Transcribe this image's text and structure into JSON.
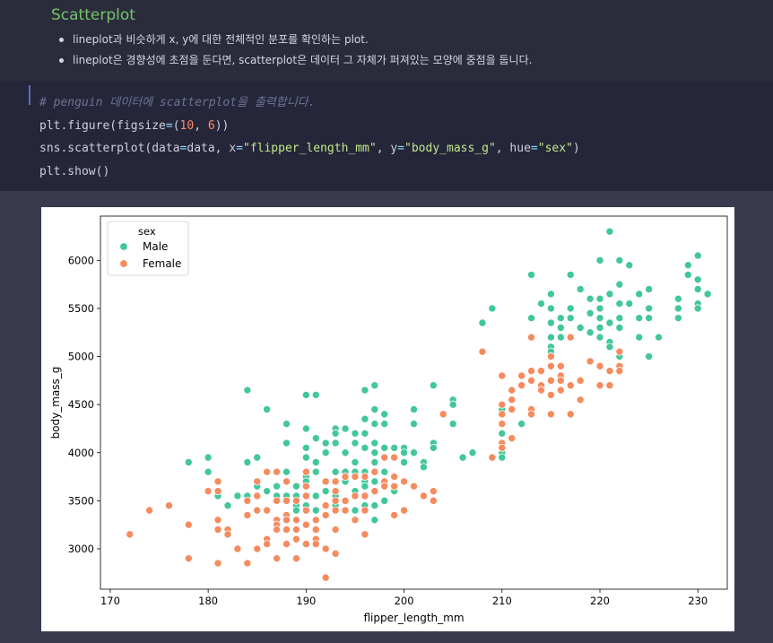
{
  "markdown": {
    "title": "Scatterplot",
    "bullets": [
      "lineplot과 비슷하게 x, y에 대한 전체적인 분포를 확인하는 plot.",
      "lineplot은 경향성에 초점을 둔다면, scatterplot은 데이터 그 자체가 퍼져있는 모양에 중점을 둡니다."
    ]
  },
  "code": {
    "comment": "# penguin 데이터에 scatterplot을 출력합니다.",
    "line2": {
      "a": "plt.figure(figsize",
      "op": "=",
      "b": "(",
      "n1": "10",
      "c": ", ",
      "n2": "6",
      "d": "))"
    },
    "line3": {
      "a": "sns.scatterplot(data",
      "op1": "=",
      "b": "data, x",
      "op2": "=",
      "s1": "\"flipper_length_mm\"",
      "c": ", y",
      "op3": "=",
      "s2": "\"body_mass_g\"",
      "d": ", hue",
      "op4": "=",
      "s3": "\"sex\"",
      "e": ")"
    },
    "line4": "plt.show()"
  },
  "chart_data": {
    "type": "scatter",
    "xlabel": "flipper_length_mm",
    "ylabel": "body_mass_g",
    "xlim": [
      169,
      233
    ],
    "ylim": [
      2580,
      6460
    ],
    "xticks": [
      170,
      180,
      190,
      200,
      210,
      220,
      230
    ],
    "yticks": [
      3000,
      3500,
      4000,
      4500,
      5000,
      5500,
      6000
    ],
    "grid": false,
    "legend": {
      "title": "sex",
      "placement": "top-left"
    },
    "series": [
      {
        "name": "Male",
        "color": "#42c79a",
        "points": [
          [
            178,
            3900
          ],
          [
            180,
            3950
          ],
          [
            180,
            3800
          ],
          [
            181,
            3700
          ],
          [
            181,
            3550
          ],
          [
            182,
            3450
          ],
          [
            183,
            3550
          ],
          [
            184,
            3550
          ],
          [
            184,
            3900
          ],
          [
            184,
            4650
          ],
          [
            185,
            3950
          ],
          [
            185,
            3650
          ],
          [
            186,
            4450
          ],
          [
            186,
            3600
          ],
          [
            187,
            3650
          ],
          [
            187,
            3550
          ],
          [
            188,
            4300
          ],
          [
            188,
            4100
          ],
          [
            188,
            3800
          ],
          [
            188,
            3550
          ],
          [
            188,
            3300
          ],
          [
            189,
            3650
          ],
          [
            189,
            3550
          ],
          [
            189,
            3450
          ],
          [
            189,
            3400
          ],
          [
            189,
            3200
          ],
          [
            190,
            4600
          ],
          [
            190,
            4250
          ],
          [
            190,
            4050
          ],
          [
            190,
            3950
          ],
          [
            190,
            3800
          ],
          [
            190,
            3750
          ],
          [
            190,
            3700
          ],
          [
            190,
            3550
          ],
          [
            190,
            3450
          ],
          [
            191,
            4600
          ],
          [
            191,
            4150
          ],
          [
            191,
            3900
          ],
          [
            191,
            3800
          ],
          [
            191,
            3550
          ],
          [
            191,
            3400
          ],
          [
            192,
            4100
          ],
          [
            192,
            4000
          ],
          [
            192,
            3600
          ],
          [
            192,
            3450
          ],
          [
            193,
            4250
          ],
          [
            193,
            4200
          ],
          [
            193,
            4100
          ],
          [
            193,
            3800
          ],
          [
            193,
            3550
          ],
          [
            193,
            3450
          ],
          [
            194,
            4250
          ],
          [
            194,
            4000
          ],
          [
            194,
            3800
          ],
          [
            194,
            3700
          ],
          [
            195,
            4200
          ],
          [
            195,
            4100
          ],
          [
            195,
            3900
          ],
          [
            195,
            3800
          ],
          [
            195,
            3600
          ],
          [
            195,
            3400
          ],
          [
            196,
            4650
          ],
          [
            196,
            4350
          ],
          [
            196,
            4200
          ],
          [
            196,
            4050
          ],
          [
            196,
            3800
          ],
          [
            196,
            3700
          ],
          [
            196,
            3650
          ],
          [
            196,
            3450
          ],
          [
            197,
            4700
          ],
          [
            197,
            4450
          ],
          [
            197,
            4300
          ],
          [
            197,
            4100
          ],
          [
            197,
            4000
          ],
          [
            197,
            3900
          ],
          [
            197,
            3700
          ],
          [
            197,
            3450
          ],
          [
            197,
            3300
          ],
          [
            198,
            4400
          ],
          [
            198,
            4300
          ],
          [
            198,
            4050
          ],
          [
            198,
            3950
          ],
          [
            198,
            3800
          ],
          [
            198,
            3500
          ],
          [
            199,
            4050
          ],
          [
            199,
            3950
          ],
          [
            199,
            3600
          ],
          [
            200,
            4050
          ],
          [
            200,
            4000
          ],
          [
            200,
            3900
          ],
          [
            201,
            4300
          ],
          [
            201,
            4450
          ],
          [
            201,
            4000
          ],
          [
            202,
            3900
          ],
          [
            202,
            3850
          ],
          [
            202,
            3550
          ],
          [
            203,
            4100
          ],
          [
            203,
            4050
          ],
          [
            203,
            4700
          ],
          [
            205,
            4550
          ],
          [
            205,
            4500
          ],
          [
            205,
            4300
          ],
          [
            206,
            3950
          ],
          [
            207,
            4000
          ],
          [
            208,
            5350
          ],
          [
            209,
            5500
          ],
          [
            210,
            4800
          ],
          [
            210,
            4450
          ],
          [
            210,
            4200
          ],
          [
            210,
            4100
          ],
          [
            210,
            4050
          ],
          [
            210,
            4000
          ],
          [
            210,
            3950
          ],
          [
            212,
            4300
          ],
          [
            213,
            5400
          ],
          [
            213,
            5850
          ],
          [
            214,
            5550
          ],
          [
            215,
            5650
          ],
          [
            215,
            5500
          ],
          [
            215,
            5350
          ],
          [
            215,
            5200
          ],
          [
            215,
            5100
          ],
          [
            215,
            5050
          ],
          [
            215,
            5000
          ],
          [
            216,
            5400
          ],
          [
            216,
            5300
          ],
          [
            216,
            5200
          ],
          [
            217,
            5850
          ],
          [
            217,
            5500
          ],
          [
            217,
            5400
          ],
          [
            218,
            5700
          ],
          [
            218,
            5300
          ],
          [
            219,
            5600
          ],
          [
            219,
            5450
          ],
          [
            219,
            5250
          ],
          [
            220,
            6000
          ],
          [
            220,
            5600
          ],
          [
            220,
            5500
          ],
          [
            220,
            5400
          ],
          [
            220,
            5300
          ],
          [
            220,
            5200
          ],
          [
            221,
            6300
          ],
          [
            221,
            5650
          ],
          [
            221,
            5350
          ],
          [
            221,
            5150
          ],
          [
            221,
            5100
          ],
          [
            222,
            6000
          ],
          [
            222,
            5750
          ],
          [
            222,
            5550
          ],
          [
            222,
            5400
          ],
          [
            222,
            5300
          ],
          [
            222,
            5000
          ],
          [
            223,
            5950
          ],
          [
            223,
            5550
          ],
          [
            224,
            5650
          ],
          [
            224,
            5400
          ],
          [
            224,
            5200
          ],
          [
            225,
            5700
          ],
          [
            225,
            5500
          ],
          [
            225,
            5400
          ],
          [
            225,
            5000
          ],
          [
            226,
            5200
          ],
          [
            228,
            5600
          ],
          [
            228,
            5500
          ],
          [
            228,
            5400
          ],
          [
            229,
            5950
          ],
          [
            229,
            5850
          ],
          [
            230,
            6050
          ],
          [
            230,
            5800
          ],
          [
            230,
            5700
          ],
          [
            230,
            5550
          ],
          [
            230,
            5500
          ],
          [
            231,
            5650
          ]
        ]
      },
      {
        "name": "Female",
        "color": "#f58b5f",
        "points": [
          [
            172,
            3150
          ],
          [
            174,
            3400
          ],
          [
            176,
            3450
          ],
          [
            178,
            3250
          ],
          [
            178,
            2900
          ],
          [
            180,
            3600
          ],
          [
            181,
            3700
          ],
          [
            181,
            3600
          ],
          [
            181,
            3300
          ],
          [
            181,
            3200
          ],
          [
            181,
            2850
          ],
          [
            182,
            3200
          ],
          [
            182,
            3150
          ],
          [
            183,
            3000
          ],
          [
            184,
            3500
          ],
          [
            184,
            3350
          ],
          [
            184,
            2850
          ],
          [
            185,
            3700
          ],
          [
            185,
            3550
          ],
          [
            185,
            3400
          ],
          [
            185,
            3000
          ],
          [
            186,
            3800
          ],
          [
            186,
            3400
          ],
          [
            186,
            3100
          ],
          [
            186,
            3050
          ],
          [
            187,
            3800
          ],
          [
            187,
            3500
          ],
          [
            187,
            3300
          ],
          [
            187,
            3250
          ],
          [
            187,
            3200
          ],
          [
            187,
            2900
          ],
          [
            188,
            3700
          ],
          [
            188,
            3500
          ],
          [
            188,
            3350
          ],
          [
            188,
            3300
          ],
          [
            188,
            3200
          ],
          [
            188,
            3050
          ],
          [
            189,
            3500
          ],
          [
            189,
            3300
          ],
          [
            189,
            3200
          ],
          [
            189,
            3100
          ],
          [
            189,
            2900
          ],
          [
            190,
            3800
          ],
          [
            190,
            3650
          ],
          [
            190,
            3550
          ],
          [
            190,
            3400
          ],
          [
            190,
            3250
          ],
          [
            190,
            3050
          ],
          [
            191,
            3300
          ],
          [
            191,
            3200
          ],
          [
            191,
            3100
          ],
          [
            191,
            3050
          ],
          [
            192,
            3700
          ],
          [
            192,
            3450
          ],
          [
            192,
            3350
          ],
          [
            192,
            3000
          ],
          [
            192,
            2700
          ],
          [
            193,
            3700
          ],
          [
            193,
            3600
          ],
          [
            193,
            3500
          ],
          [
            193,
            3400
          ],
          [
            193,
            3200
          ],
          [
            193,
            2950
          ],
          [
            194,
            3750
          ],
          [
            194,
            3500
          ],
          [
            194,
            3400
          ],
          [
            195,
            3750
          ],
          [
            195,
            3550
          ],
          [
            195,
            3300
          ],
          [
            196,
            3750
          ],
          [
            196,
            3550
          ],
          [
            196,
            3400
          ],
          [
            196,
            3150
          ],
          [
            197,
            3800
          ],
          [
            197,
            3600
          ],
          [
            198,
            3950
          ],
          [
            198,
            3700
          ],
          [
            198,
            3650
          ],
          [
            199,
            3950
          ],
          [
            199,
            3750
          ],
          [
            199,
            3650
          ],
          [
            199,
            3350
          ],
          [
            200,
            3700
          ],
          [
            200,
            3400
          ],
          [
            201,
            3650
          ],
          [
            202,
            3550
          ],
          [
            203,
            3600
          ],
          [
            203,
            3500
          ],
          [
            204,
            4400
          ],
          [
            208,
            5050
          ],
          [
            209,
            3950
          ],
          [
            210,
            4800
          ],
          [
            210,
            4500
          ],
          [
            210,
            4400
          ],
          [
            210,
            4300
          ],
          [
            210,
            4100
          ],
          [
            210,
            4050
          ],
          [
            211,
            4650
          ],
          [
            211,
            4550
          ],
          [
            211,
            4450
          ],
          [
            211,
            4150
          ],
          [
            212,
            4800
          ],
          [
            212,
            4700
          ],
          [
            213,
            5200
          ],
          [
            213,
            4850
          ],
          [
            213,
            4750
          ],
          [
            213,
            4450
          ],
          [
            213,
            4400
          ],
          [
            214,
            4850
          ],
          [
            214,
            4700
          ],
          [
            214,
            4650
          ],
          [
            215,
            5000
          ],
          [
            215,
            4900
          ],
          [
            215,
            4750
          ],
          [
            215,
            4600
          ],
          [
            215,
            4400
          ],
          [
            216,
            4900
          ],
          [
            216,
            4800
          ],
          [
            216,
            4750
          ],
          [
            216,
            4650
          ],
          [
            217,
            5200
          ],
          [
            217,
            4700
          ],
          [
            217,
            4400
          ],
          [
            218,
            4750
          ],
          [
            218,
            4550
          ],
          [
            219,
            4950
          ],
          [
            220,
            4900
          ],
          [
            220,
            4700
          ],
          [
            221,
            4850
          ],
          [
            221,
            4700
          ],
          [
            222,
            5050
          ],
          [
            222,
            4900
          ],
          [
            222,
            4850
          ]
        ]
      }
    ]
  }
}
